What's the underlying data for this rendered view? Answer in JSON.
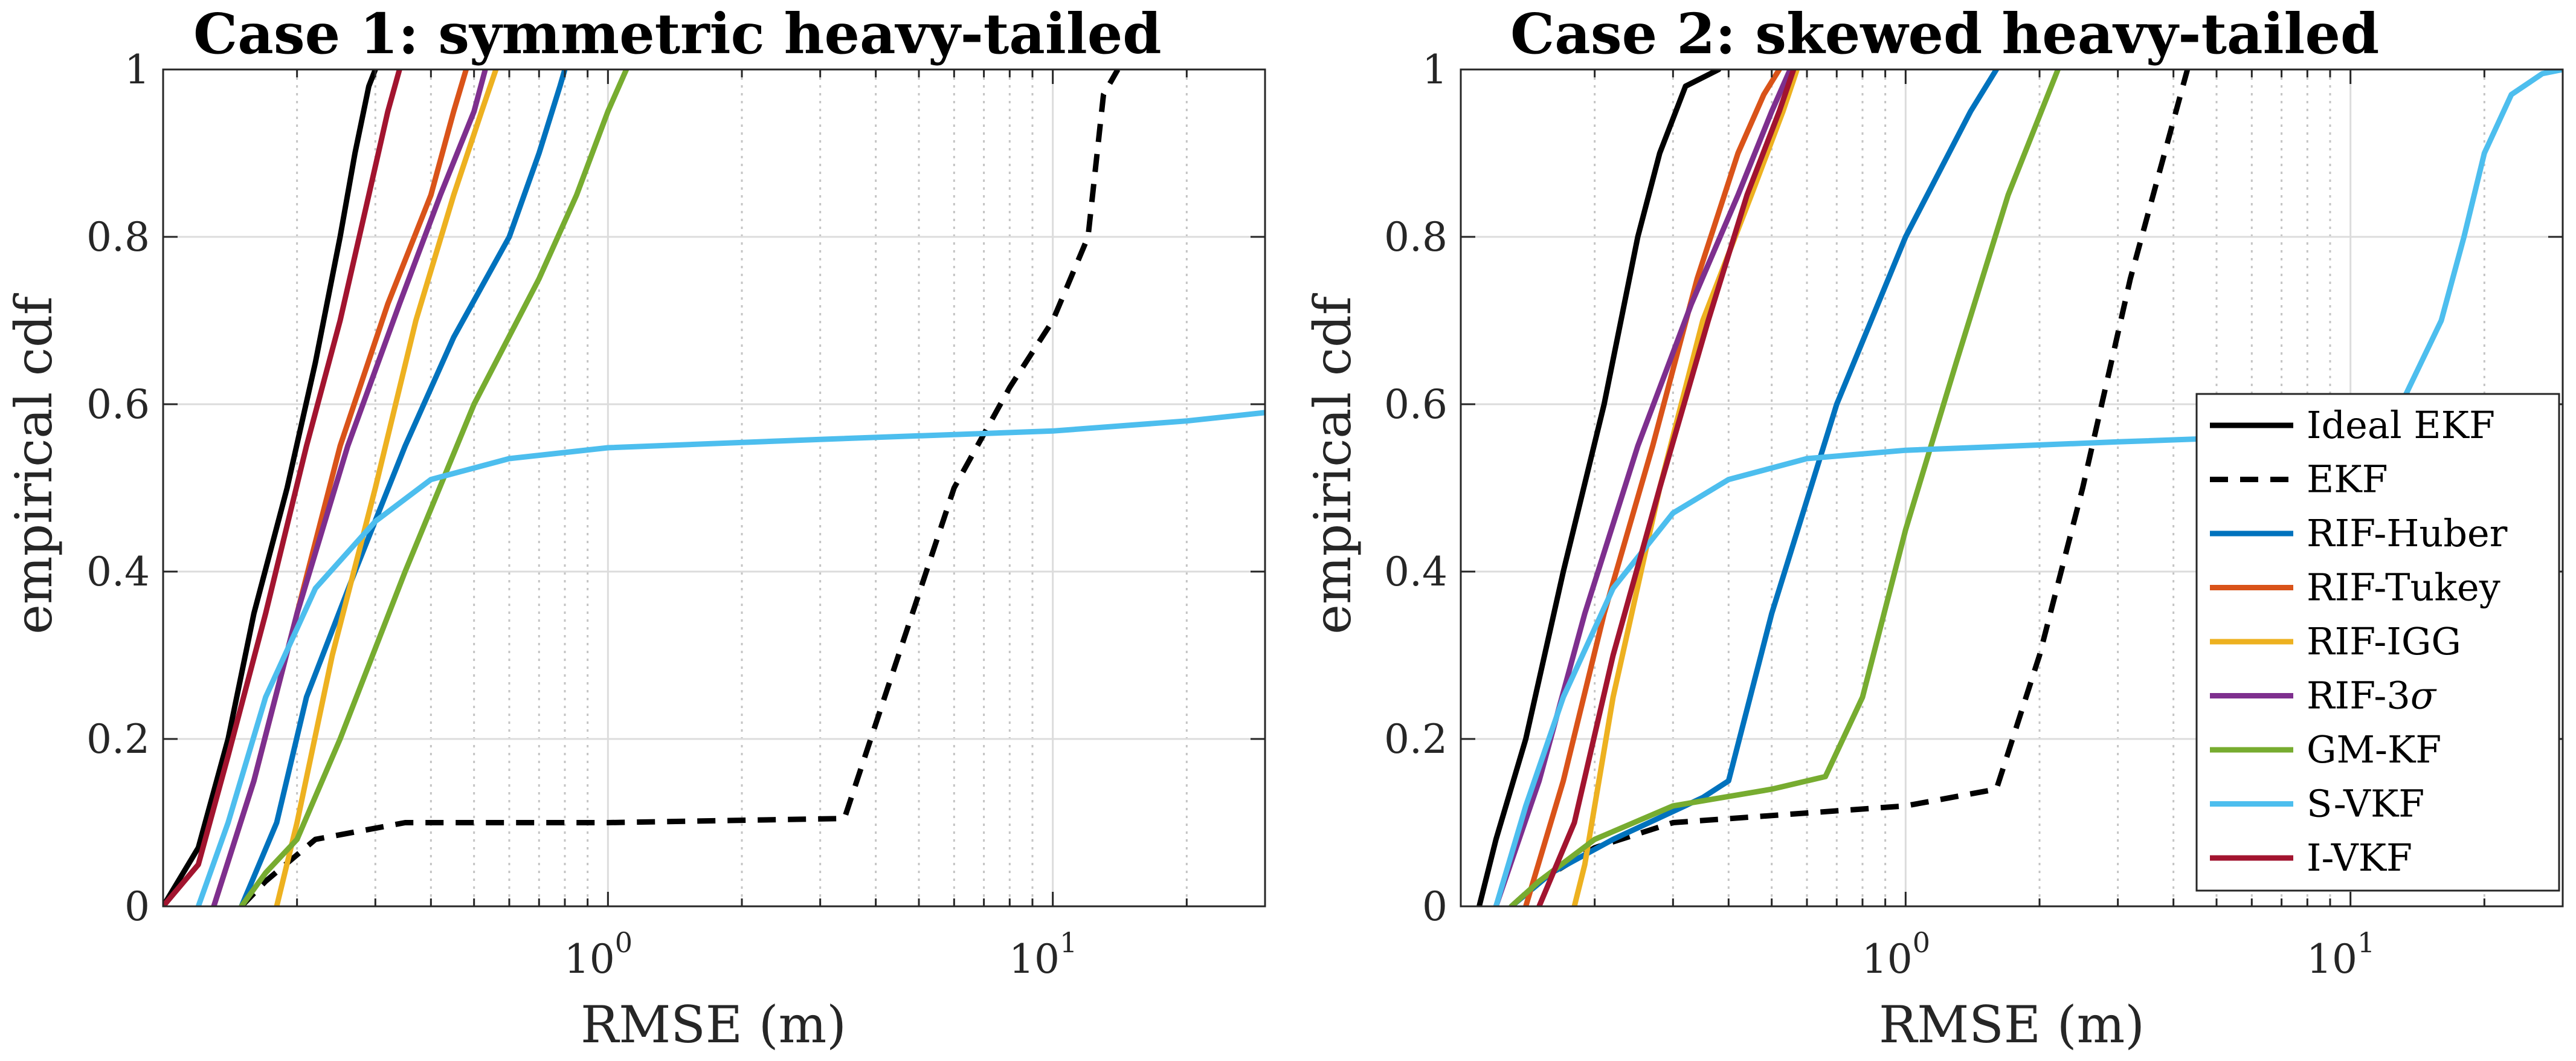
{
  "figure": {
    "series_styles": {
      "Ideal EKF": {
        "color": "#000000",
        "dash": "solid"
      },
      "EKF": {
        "color": "#000000",
        "dash": "dashed"
      },
      "RIF-Huber": {
        "color": "#0072BD",
        "dash": "solid"
      },
      "RIF-Tukey": {
        "color": "#D95319",
        "dash": "solid"
      },
      "RIF-IGG": {
        "color": "#EDB120",
        "dash": "solid"
      },
      "RIF-3σ": {
        "color": "#7E2F8E",
        "dash": "solid"
      },
      "GM-KF": {
        "color": "#77AC30",
        "dash": "solid"
      },
      "S-VKF": {
        "color": "#4DBEEE",
        "dash": "solid"
      },
      "I-VKF": {
        "color": "#A2142F",
        "dash": "solid"
      }
    }
  },
  "chart_data": [
    {
      "type": "line",
      "title": "Case 1: symmetric heavy-tailed",
      "xlabel": "RMSE (m)",
      "ylabel": "empirical cdf",
      "xscale": "log",
      "xlim": [
        0.1,
        30
      ],
      "ylim": [
        0,
        1
      ],
      "x_ticks": [
        {
          "value": 1,
          "label": "10^0"
        },
        {
          "value": 10,
          "label": "10^1"
        }
      ],
      "y_ticks": [
        "0",
        "0.2",
        "0.4",
        "0.6",
        "0.8",
        "1"
      ],
      "grid": true,
      "legend": null,
      "series": [
        {
          "name": "Ideal EKF",
          "points": [
            [
              0.1,
              0
            ],
            [
              0.12,
              0.07
            ],
            [
              0.14,
              0.2
            ],
            [
              0.16,
              0.35
            ],
            [
              0.19,
              0.5
            ],
            [
              0.22,
              0.65
            ],
            [
              0.25,
              0.8
            ],
            [
              0.27,
              0.9
            ],
            [
              0.29,
              0.98
            ],
            [
              0.3,
              1
            ]
          ]
        },
        {
          "name": "EKF",
          "points": [
            [
              0.15,
              0
            ],
            [
              0.17,
              0.03
            ],
            [
              0.22,
              0.08
            ],
            [
              0.35,
              0.1
            ],
            [
              1,
              0.1
            ],
            [
              3.4,
              0.105
            ],
            [
              4.5,
              0.3
            ],
            [
              6,
              0.5
            ],
            [
              8,
              0.62
            ],
            [
              10,
              0.7
            ],
            [
              12,
              0.8
            ],
            [
              13,
              0.97
            ],
            [
              14,
              1
            ]
          ]
        },
        {
          "name": "RIF-Huber",
          "points": [
            [
              0.15,
              0
            ],
            [
              0.18,
              0.1
            ],
            [
              0.21,
              0.25
            ],
            [
              0.27,
              0.4
            ],
            [
              0.35,
              0.55
            ],
            [
              0.45,
              0.68
            ],
            [
              0.6,
              0.8
            ],
            [
              0.7,
              0.9
            ],
            [
              0.78,
              0.98
            ],
            [
              0.8,
              1
            ]
          ]
        },
        {
          "name": "RIF-Tukey",
          "points": [
            [
              0.13,
              0
            ],
            [
              0.16,
              0.15
            ],
            [
              0.2,
              0.35
            ],
            [
              0.25,
              0.55
            ],
            [
              0.32,
              0.72
            ],
            [
              0.4,
              0.85
            ],
            [
              0.45,
              0.95
            ],
            [
              0.48,
              1
            ]
          ]
        },
        {
          "name": "RIF-IGG",
          "points": [
            [
              0.18,
              0
            ],
            [
              0.2,
              0.1
            ],
            [
              0.24,
              0.3
            ],
            [
              0.3,
              0.5
            ],
            [
              0.37,
              0.7
            ],
            [
              0.45,
              0.85
            ],
            [
              0.52,
              0.95
            ],
            [
              0.56,
              1
            ]
          ]
        },
        {
          "name": "RIF-3σ",
          "points": [
            [
              0.13,
              0
            ],
            [
              0.16,
              0.15
            ],
            [
              0.2,
              0.35
            ],
            [
              0.26,
              0.55
            ],
            [
              0.34,
              0.72
            ],
            [
              0.42,
              0.85
            ],
            [
              0.5,
              0.95
            ],
            [
              0.53,
              1
            ]
          ]
        },
        {
          "name": "GM-KF",
          "points": [
            [
              0.15,
              0
            ],
            [
              0.17,
              0.04
            ],
            [
              0.2,
              0.08
            ],
            [
              0.25,
              0.2
            ],
            [
              0.35,
              0.4
            ],
            [
              0.5,
              0.6
            ],
            [
              0.7,
              0.75
            ],
            [
              0.85,
              0.85
            ],
            [
              1,
              0.95
            ],
            [
              1.1,
              1
            ]
          ]
        },
        {
          "name": "S-VKF",
          "points": [
            [
              0.12,
              0
            ],
            [
              0.14,
              0.1
            ],
            [
              0.17,
              0.25
            ],
            [
              0.22,
              0.38
            ],
            [
              0.3,
              0.46
            ],
            [
              0.4,
              0.51
            ],
            [
              0.6,
              0.535
            ],
            [
              1,
              0.548
            ],
            [
              3,
              0.558
            ],
            [
              10,
              0.568
            ],
            [
              20,
              0.58
            ],
            [
              30,
              0.59
            ]
          ]
        },
        {
          "name": "I-VKF",
          "points": [
            [
              0.1,
              0
            ],
            [
              0.12,
              0.05
            ],
            [
              0.14,
              0.18
            ],
            [
              0.17,
              0.35
            ],
            [
              0.21,
              0.55
            ],
            [
              0.25,
              0.7
            ],
            [
              0.29,
              0.85
            ],
            [
              0.32,
              0.95
            ],
            [
              0.34,
              1
            ]
          ]
        }
      ]
    },
    {
      "type": "line",
      "title": "Case 2: skewed heavy-tailed",
      "xlabel": "RMSE (m)",
      "ylabel": "empirical cdf",
      "xscale": "log",
      "xlim": [
        0.1,
        30
      ],
      "ylim": [
        0,
        1
      ],
      "x_ticks": [
        {
          "value": 1,
          "label": "10^0"
        },
        {
          "value": 10,
          "label": "10^1"
        }
      ],
      "y_ticks": [
        "0",
        "0.2",
        "0.4",
        "0.6",
        "0.8",
        "1"
      ],
      "grid": true,
      "legend": "right",
      "series": [
        {
          "name": "Ideal EKF",
          "points": [
            [
              0.11,
              0
            ],
            [
              0.12,
              0.08
            ],
            [
              0.14,
              0.2
            ],
            [
              0.17,
              0.4
            ],
            [
              0.21,
              0.6
            ],
            [
              0.25,
              0.8
            ],
            [
              0.28,
              0.9
            ],
            [
              0.32,
              0.98
            ],
            [
              0.38,
              1
            ]
          ]
        },
        {
          "name": "EKF",
          "points": [
            [
              0.13,
              0
            ],
            [
              0.15,
              0.03
            ],
            [
              0.2,
              0.07
            ],
            [
              0.3,
              0.1
            ],
            [
              1,
              0.12
            ],
            [
              1.6,
              0.14
            ],
            [
              2,
              0.3
            ],
            [
              2.5,
              0.5
            ],
            [
              3.2,
              0.75
            ],
            [
              4.3,
              1
            ]
          ]
        },
        {
          "name": "RIF-Huber",
          "points": [
            [
              0.13,
              0
            ],
            [
              0.16,
              0.04
            ],
            [
              0.22,
              0.08
            ],
            [
              0.35,
              0.13
            ],
            [
              0.4,
              0.15
            ],
            [
              0.5,
              0.35
            ],
            [
              0.7,
              0.6
            ],
            [
              1,
              0.8
            ],
            [
              1.4,
              0.95
            ],
            [
              1.6,
              1
            ]
          ]
        },
        {
          "name": "RIF-Tukey",
          "points": [
            [
              0.14,
              0
            ],
            [
              0.17,
              0.15
            ],
            [
              0.21,
              0.35
            ],
            [
              0.27,
              0.55
            ],
            [
              0.34,
              0.75
            ],
            [
              0.42,
              0.9
            ],
            [
              0.48,
              0.97
            ],
            [
              0.52,
              1
            ]
          ]
        },
        {
          "name": "RIF-IGG",
          "points": [
            [
              0.18,
              0
            ],
            [
              0.19,
              0.05
            ],
            [
              0.22,
              0.25
            ],
            [
              0.28,
              0.5
            ],
            [
              0.35,
              0.7
            ],
            [
              0.45,
              0.85
            ],
            [
              0.53,
              0.95
            ],
            [
              0.57,
              1
            ]
          ]
        },
        {
          "name": "RIF-3σ",
          "points": [
            [
              0.12,
              0
            ],
            [
              0.15,
              0.15
            ],
            [
              0.19,
              0.35
            ],
            [
              0.25,
              0.55
            ],
            [
              0.33,
              0.72
            ],
            [
              0.42,
              0.85
            ],
            [
              0.5,
              0.95
            ],
            [
              0.55,
              1
            ]
          ]
        },
        {
          "name": "GM-KF",
          "points": [
            [
              0.13,
              0
            ],
            [
              0.15,
              0.03
            ],
            [
              0.2,
              0.08
            ],
            [
              0.3,
              0.12
            ],
            [
              0.5,
              0.14
            ],
            [
              0.66,
              0.155
            ],
            [
              0.8,
              0.25
            ],
            [
              1,
              0.45
            ],
            [
              1.3,
              0.65
            ],
            [
              1.7,
              0.85
            ],
            [
              2.2,
              1
            ]
          ]
        },
        {
          "name": "S-VKF",
          "points": [
            [
              0.12,
              0
            ],
            [
              0.14,
              0.12
            ],
            [
              0.17,
              0.25
            ],
            [
              0.22,
              0.38
            ],
            [
              0.3,
              0.47
            ],
            [
              0.4,
              0.51
            ],
            [
              0.6,
              0.535
            ],
            [
              1,
              0.545
            ],
            [
              3,
              0.555
            ],
            [
              10,
              0.565
            ],
            [
              13,
              0.6
            ],
            [
              16,
              0.7
            ],
            [
              18,
              0.8
            ],
            [
              20,
              0.9
            ],
            [
              23,
              0.97
            ],
            [
              27,
              0.995
            ],
            [
              30,
              1
            ]
          ]
        },
        {
          "name": "I-VKF",
          "points": [
            [
              0.15,
              0
            ],
            [
              0.18,
              0.1
            ],
            [
              0.22,
              0.3
            ],
            [
              0.28,
              0.5
            ],
            [
              0.36,
              0.7
            ],
            [
              0.44,
              0.85
            ],
            [
              0.52,
              0.95
            ],
            [
              0.56,
              1
            ]
          ]
        }
      ]
    }
  ]
}
